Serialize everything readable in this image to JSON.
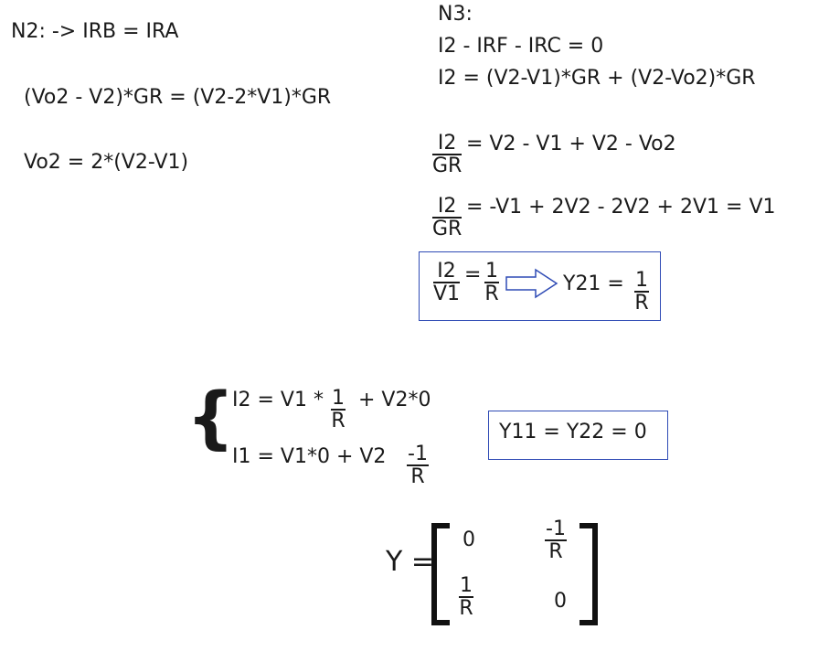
{
  "n2": {
    "heading": "N2:  -> IRB = IRA",
    "eq1": "(Vo2 - V2)*GR = (V2-2*V1)*GR",
    "eq2": "Vo2 = 2*(V2-V1)"
  },
  "n3": {
    "heading": "N3:",
    "eq1": "I2 - IRF - IRC = 0",
    "eq2": "I2 = (V2-V1)*GR + (V2-Vo2)*GR",
    "frac1": {
      "num": "I2",
      "den": "GR",
      "rhs": "= V2 - V1 + V2 - Vo2"
    },
    "frac2": {
      "num": "I2",
      "den": "GR",
      "rhs": "= -V1 + 2V2 - 2V2 + 2V1 = V1"
    },
    "result": {
      "lhs_num": "I2",
      "lhs_den": "V1",
      "eq": "=",
      "mid_num": "1",
      "mid_den": "R",
      "label": "Y21 =",
      "rhs_num": "1",
      "rhs_den": "R"
    }
  },
  "system": {
    "brace": "{",
    "row1": {
      "lhs": "I2 = V1 *",
      "num": "1",
      "den": "R",
      "tail": "+ V2*0"
    },
    "row2": {
      "lhs": "I1 = V1*0 + V2",
      "num": "-1",
      "den": "R"
    },
    "boxed": "Y11 = Y22 = 0"
  },
  "matrix": {
    "label": "Y =",
    "a11": "0",
    "a12": {
      "num": "-1",
      "den": "R"
    },
    "a21": {
      "num": "1",
      "den": "R"
    },
    "a22": "0"
  },
  "colors": {
    "box_border": "#2f4bb5",
    "text": "#1a1a1a"
  }
}
